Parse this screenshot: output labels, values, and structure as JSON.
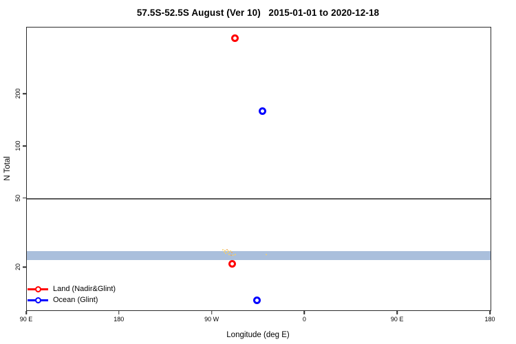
{
  "chart_data": {
    "type": "scatter",
    "title": "57.5S-52.5S August (Ver 10)   2015-01-01 to 2020-12-18",
    "xlabel": "Longitude (deg E)",
    "ylabel": "N Total",
    "x_axis": {
      "note": "longitude axis running eastward from 90E, wrapping through 180, 90W, 0, 90E to 180",
      "axis_deg_range": [
        90,
        540
      ],
      "ticks": [
        {
          "deg": 90,
          "label": "90 E"
        },
        {
          "deg": 180,
          "label": "180"
        },
        {
          "deg": 270,
          "label": "90 W"
        },
        {
          "deg": 360,
          "label": "0"
        },
        {
          "deg": 450,
          "label": "90 E"
        },
        {
          "deg": 540,
          "label": "180"
        }
      ]
    },
    "y_axis": {
      "scale": "log10",
      "ticks": [
        20,
        50,
        100,
        200
      ],
      "range_approx": [
        11.4,
        486
      ]
    },
    "series": [
      {
        "name": "Land (Nadir&Glint)",
        "color": "#ff0000",
        "marker": "open-circle",
        "points": [
          {
            "lon_deg_axis": 292,
            "lon": "68 W",
            "n": 420
          },
          {
            "lon_deg_axis": 289,
            "lon": "71 W",
            "n": 21
          }
        ]
      },
      {
        "name": "Ocean (Glint)",
        "color": "#0000ff",
        "marker": "open-circle",
        "points": [
          {
            "lon_deg_axis": 319,
            "lon": "41 W",
            "n": 160
          },
          {
            "lon_deg_axis": 313,
            "lon": "47 W",
            "n": 13
          }
        ]
      }
    ],
    "reference_band": {
      "n_min": 22.1,
      "n_max": 25.0,
      "color": "#aabfdc",
      "x_full_width": true
    },
    "reference_line": {
      "n": 50,
      "color": "#5a5a5a"
    },
    "scatter_cluster": {
      "description": "tiny yellow/orange dots on top of reference band near 80W-67W and one near 38W",
      "colors": [
        "#f6cf6a",
        "#f0a95a"
      ],
      "points": [
        [
          280.3,
          25.4,
          0
        ],
        [
          282.3,
          25.2,
          0
        ],
        [
          284.3,
          25.4,
          1
        ],
        [
          285.6,
          24.9,
          0
        ],
        [
          287.6,
          24.9,
          0
        ],
        [
          288.9,
          24.4,
          1
        ],
        [
          284.9,
          24.4,
          0
        ],
        [
          282.9,
          24.2,
          0
        ],
        [
          286.3,
          23.9,
          0
        ],
        [
          288.3,
          23.7,
          1
        ],
        [
          290.3,
          23.5,
          0
        ],
        [
          292.3,
          23.9,
          0
        ],
        [
          281.3,
          24.7,
          0
        ],
        [
          322.4,
          23.9,
          0
        ]
      ]
    },
    "legend": {
      "items": [
        {
          "label": "Land (Nadir&Glint)",
          "color": "#ff0000"
        },
        {
          "label": "Ocean (Glint)",
          "color": "#0000ff"
        }
      ]
    }
  }
}
